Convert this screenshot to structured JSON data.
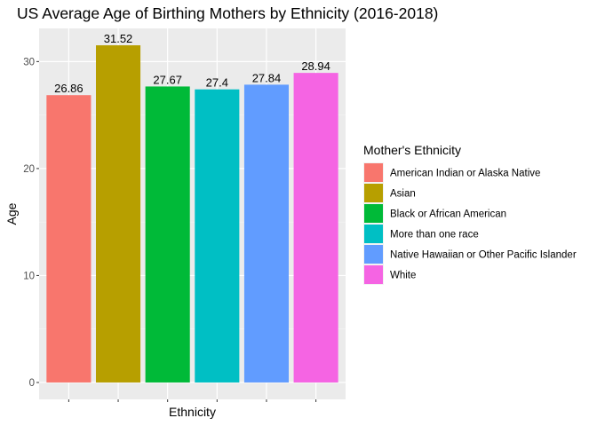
{
  "chart_data": {
    "type": "bar",
    "title": "US Average Age of Birthing Mothers by Ethnicity (2016-2018)",
    "xlabel": "Ethnicity",
    "ylabel": "Age",
    "categories": [
      "American Indian or Alaska Native",
      "Asian",
      "Black or African American",
      "More than one race",
      "Native Hawaiian or Other Pacific Islander",
      "White"
    ],
    "values": [
      26.86,
      31.52,
      27.67,
      27.4,
      27.84,
      28.94
    ],
    "data_labels": [
      "26.86",
      "31.52",
      "27.67",
      "27.4",
      "27.84",
      "28.94"
    ],
    "colors": [
      "#F8766D",
      "#B79F00",
      "#00BA38",
      "#00BFC4",
      "#619CFF",
      "#F564E3"
    ],
    "ylim": [
      -1.58,
      33.1
    ],
    "yticks": [
      0,
      10,
      20,
      30
    ],
    "ytick_labels": [
      "0",
      "10",
      "20",
      "30"
    ],
    "xtick_labels_shown": false,
    "grid": true,
    "legend": {
      "title": "Mother's Ethnicity",
      "placement": "right"
    }
  }
}
